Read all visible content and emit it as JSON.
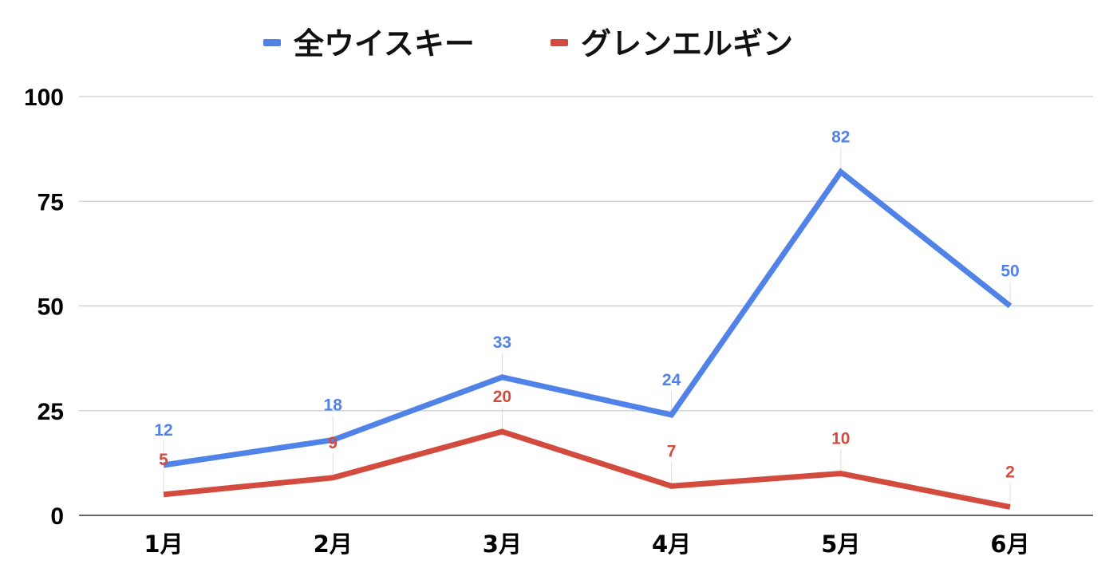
{
  "chart_data": {
    "type": "line",
    "categories": [
      "1月",
      "2月",
      "3月",
      "4月",
      "5月",
      "6月"
    ],
    "series": [
      {
        "name": "全ウイスキー",
        "color": "#5082e8",
        "values": [
          12,
          18,
          33,
          24,
          82,
          50
        ]
      },
      {
        "name": "グレンエルギン",
        "color": "#d24b3e",
        "values": [
          5,
          9,
          20,
          7,
          10,
          2
        ]
      }
    ],
    "ylim": [
      0,
      100
    ],
    "yticks": [
      "0",
      "25",
      "50",
      "75",
      "100"
    ],
    "grid": true,
    "legend": "top-center",
    "data_labels": true
  }
}
